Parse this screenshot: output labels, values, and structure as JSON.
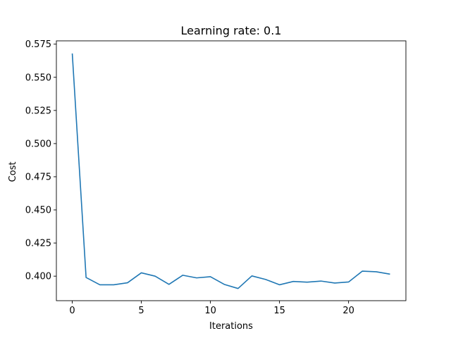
{
  "chart_data": {
    "type": "line",
    "title": "Learning rate: 0.1",
    "xlabel": "Iterations",
    "ylabel": "Cost",
    "xlim": [
      -1.15,
      24.15
    ],
    "ylim": [
      0.3815,
      0.5775
    ],
    "xticks": [
      0,
      5,
      10,
      15,
      20
    ],
    "xtick_labels": [
      "0",
      "5",
      "10",
      "15",
      "20"
    ],
    "yticks": [
      0.4,
      0.425,
      0.45,
      0.475,
      0.5,
      0.525,
      0.55,
      0.575
    ],
    "ytick_labels": [
      "0.400",
      "0.425",
      "0.450",
      "0.475",
      "0.500",
      "0.525",
      "0.550",
      "0.575"
    ],
    "grid": false,
    "series": [
      {
        "color": "#1f77b4",
        "x": [
          0,
          1,
          2,
          3,
          4,
          5,
          6,
          7,
          8,
          9,
          10,
          11,
          12,
          13,
          14,
          15,
          16,
          17,
          18,
          19,
          20,
          21,
          22,
          23
        ],
        "y": [
          0.568,
          0.399,
          0.3935,
          0.3935,
          0.395,
          0.4025,
          0.4,
          0.3938,
          0.4007,
          0.3987,
          0.3996,
          0.3938,
          0.3907,
          0.4002,
          0.3975,
          0.3935,
          0.396,
          0.3955,
          0.3963,
          0.3948,
          0.3956,
          0.4038,
          0.4033,
          0.4015
        ]
      }
    ]
  }
}
